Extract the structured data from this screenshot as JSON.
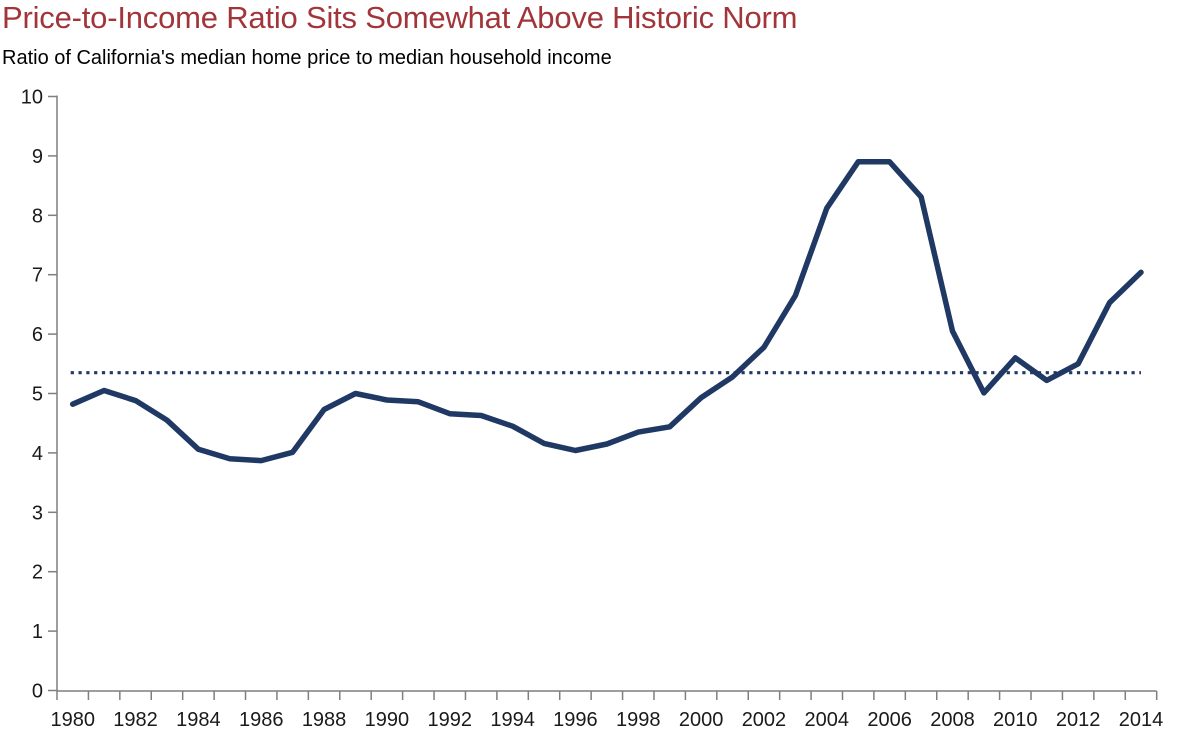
{
  "header": {
    "title": "Price-to-Income Ratio Sits Somewhat Above Historic Norm",
    "subtitle": "Ratio of California's median home price to median household income"
  },
  "colors": {
    "title_red": "#A2353A",
    "subtitle_black": "#000000",
    "series_navy": "#1F3864",
    "norm_dotted_navy": "#1F3864",
    "axis_gray": "#7F7F7F",
    "tick_label": "#1a1a1a",
    "background": "#ffffff"
  },
  "chart_data": {
    "type": "line",
    "title": "Price-to-Income Ratio Sits Somewhat Above Historic Norm",
    "subtitle": "Ratio of California's median home price to median household income",
    "xlabel": "",
    "ylabel": "",
    "x": [
      1980,
      1981,
      1982,
      1983,
      1984,
      1985,
      1986,
      1987,
      1988,
      1989,
      1990,
      1991,
      1992,
      1993,
      1994,
      1995,
      1996,
      1997,
      1998,
      1999,
      2000,
      2001,
      2002,
      2003,
      2004,
      2005,
      2006,
      2007,
      2008,
      2009,
      2010,
      2011,
      2012,
      2013,
      2014
    ],
    "series": [
      {
        "name": "Ratio of median home price to median household income",
        "style": "solid",
        "values": [
          4.82,
          5.05,
          4.88,
          4.55,
          4.06,
          3.9,
          3.87,
          4.01,
          4.73,
          5.0,
          4.89,
          4.86,
          4.66,
          4.63,
          4.45,
          4.16,
          4.04,
          4.15,
          4.35,
          4.44,
          4.93,
          5.28,
          5.78,
          6.65,
          8.12,
          8.9,
          8.9,
          8.31,
          6.05,
          5.01,
          5.6,
          5.22,
          5.5,
          6.53,
          7.04
        ]
      },
      {
        "name": "Historic norm",
        "style": "dotted-constant",
        "value": 5.35
      }
    ],
    "ylim": [
      0,
      10
    ],
    "yticks": [
      "0",
      "1",
      "2",
      "3",
      "4",
      "5",
      "6",
      "7",
      "8",
      "9",
      "10"
    ],
    "xtick_labels": [
      "1980",
      "1982",
      "1984",
      "1986",
      "1988",
      "1990",
      "1992",
      "1994",
      "1996",
      "1998",
      "2000",
      "2002",
      "2004",
      "2006",
      "2008",
      "2010",
      "2012",
      "2014"
    ],
    "xtick_label_step": 2,
    "grid": false,
    "legend_position": "none"
  }
}
